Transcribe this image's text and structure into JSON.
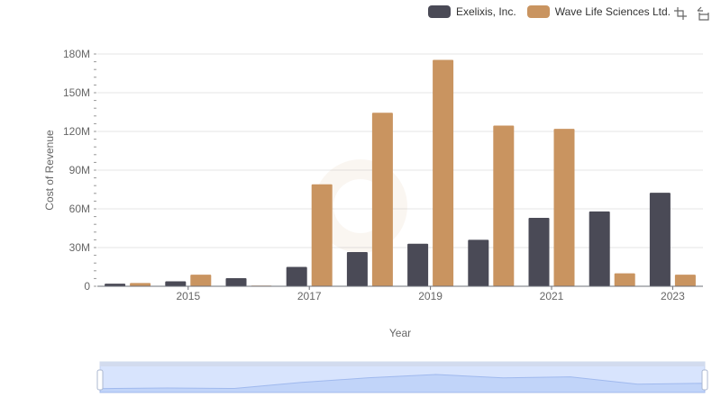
{
  "chart_data": {
    "type": "bar",
    "title": "",
    "xlabel": "Year",
    "ylabel": "Cost of Revenue",
    "categories": [
      "2014",
      "2015",
      "2016",
      "2017",
      "2018",
      "2019",
      "2020",
      "2021",
      "2022",
      "2023"
    ],
    "x_tick_labels": [
      "2015",
      "2017",
      "2019",
      "2021",
      "2023"
    ],
    "y_tick_labels": [
      "0",
      "30M",
      "60M",
      "90M",
      "120M",
      "150M",
      "180M"
    ],
    "ylim": [
      0,
      180000000
    ],
    "grid": true,
    "legend_position": "top-right",
    "series": [
      {
        "name": "Exelixis, Inc.",
        "color": "#4a4a56",
        "values": [
          2000000,
          3800000,
          6300000,
          15000000,
          26500000,
          33000000,
          36000000,
          53000000,
          58000000,
          72500000
        ]
      },
      {
        "name": "Wave Life Sciences Ltd.",
        "color": "#c99460",
        "values": [
          2500000,
          9000000,
          500000,
          79000000,
          134500000,
          175500000,
          124500000,
          122000000,
          10000000,
          9000000
        ]
      }
    ]
  },
  "toolbox": {
    "zoom_icon": "zoom-icon",
    "restore_icon": "restore-icon"
  },
  "slider": {
    "start": 0,
    "end": 100,
    "unit": "percent"
  }
}
